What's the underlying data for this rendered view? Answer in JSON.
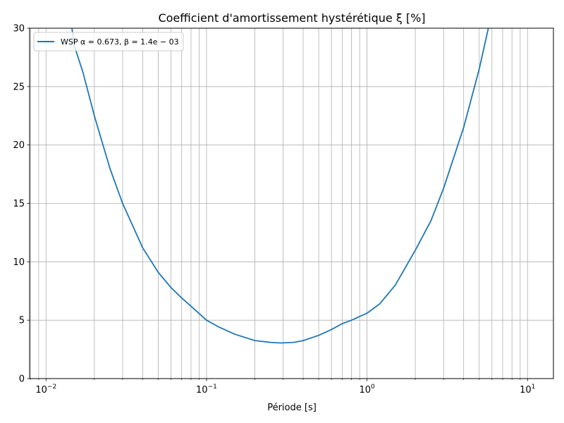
{
  "chart_data": {
    "type": "line",
    "title": "Coefficient d'amortissement hystérétique ξ [%]",
    "xlabel": "Période [s]",
    "ylabel": "",
    "xscale": "log",
    "xlim": [
      0.0079,
      14.5
    ],
    "ylim": [
      0,
      30
    ],
    "grid": "both major and minor x, major y",
    "legend": "upper-left",
    "x_ticks": [
      {
        "value": 0.01,
        "base": "10",
        "exp": "−2"
      },
      {
        "value": 0.1,
        "base": "10",
        "exp": "−1"
      },
      {
        "value": 1,
        "base": "10",
        "exp": "0"
      },
      {
        "value": 10,
        "base": "10",
        "exp": "1"
      }
    ],
    "y_ticks": [
      0,
      5,
      10,
      15,
      20,
      25,
      30
    ],
    "series": [
      {
        "name": "WSP α = 0.673, β = 1.4e − 03",
        "color": "#1f77b4",
        "x": [
          0.0145,
          0.015,
          0.017,
          0.02,
          0.025,
          0.03,
          0.04,
          0.05,
          0.06,
          0.07,
          0.08,
          0.1,
          0.12,
          0.15,
          0.2,
          0.25,
          0.29,
          0.35,
          0.4,
          0.5,
          0.6,
          0.7,
          0.8,
          1.0,
          1.2,
          1.5,
          2.0,
          2.5,
          3.0,
          4.0,
          5.0,
          5.7
        ],
        "y": [
          30.0,
          28.5,
          26.2,
          22.5,
          18.0,
          15.0,
          11.2,
          9.1,
          7.8,
          6.9,
          6.2,
          5.0,
          4.4,
          3.8,
          3.25,
          3.1,
          3.05,
          3.1,
          3.25,
          3.7,
          4.2,
          4.7,
          5.0,
          5.6,
          6.4,
          8.0,
          11.0,
          13.5,
          16.3,
          21.5,
          26.5,
          30.0
        ]
      }
    ]
  }
}
